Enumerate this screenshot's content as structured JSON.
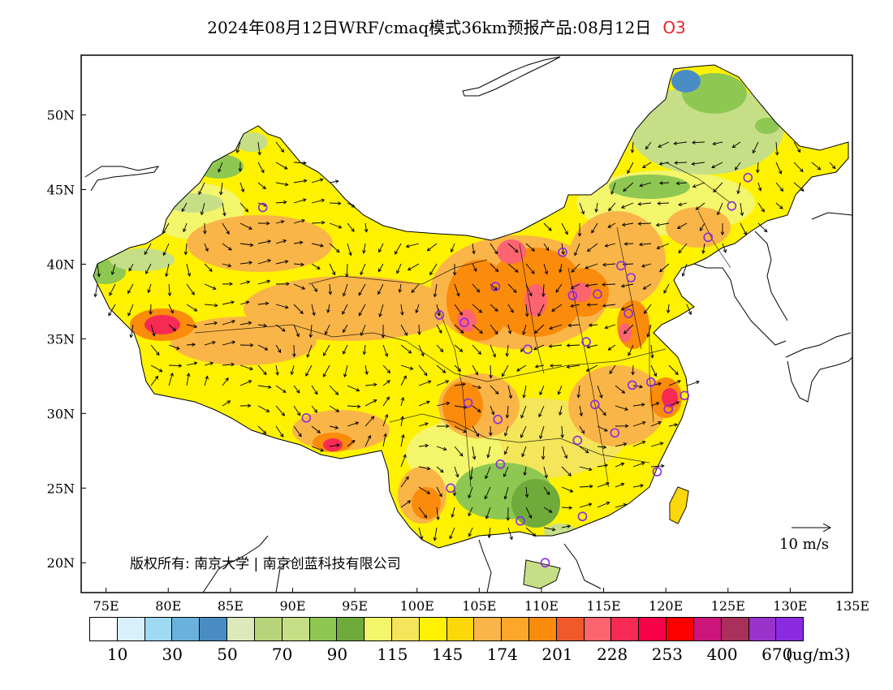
{
  "title": {
    "text": "2024年08月12日WRF/cmaq模式36km预报产品:08月12日",
    "species": "O3"
  },
  "axes": {
    "lat_labels": [
      "50N",
      "45N",
      "40N",
      "35N",
      "30N",
      "25N",
      "20N"
    ],
    "lon_labels": [
      "75E",
      "80E",
      "85E",
      "90E",
      "95E",
      "100E",
      "105E",
      "110E",
      "115E",
      "120E",
      "125E",
      "130E",
      "135E"
    ],
    "lon_range": [
      73,
      135
    ],
    "lat_range": [
      18,
      54
    ]
  },
  "legend": {
    "colors": [
      "#ffffff",
      "#d8f0fa",
      "#9fd9f2",
      "#6ab2de",
      "#4a8cc4",
      "#dde9bb",
      "#b8d47a",
      "#c6df86",
      "#8ec852",
      "#6fab3a",
      "#f3f56a",
      "#f4e55a",
      "#fff200",
      "#fcd80a",
      "#f9b548",
      "#fca62a",
      "#fb8b0a",
      "#f05a2a",
      "#fc6470",
      "#f62a55",
      "#f6004a",
      "#fc0000",
      "#cc157a",
      "#a8305a",
      "#9933cc",
      "#8a2be2"
    ],
    "labels": [
      "10",
      "30",
      "50",
      "70",
      "90",
      "115",
      "145",
      "174",
      "201",
      "228",
      "253",
      "400",
      "670"
    ],
    "unit": "(ug/m3)"
  },
  "copyright": "版权所有: 南京大学 | 南京创蓝科技有限公司",
  "wind_reference": "10 m/s",
  "stations": [
    {
      "lon": 87.6,
      "lat": 43.8
    },
    {
      "lon": 91.1,
      "lat": 29.7
    },
    {
      "lon": 101.8,
      "lat": 36.6
    },
    {
      "lon": 103.8,
      "lat": 36.1
    },
    {
      "lon": 106.3,
      "lat": 38.5
    },
    {
      "lon": 111.7,
      "lat": 40.8
    },
    {
      "lon": 108.9,
      "lat": 34.3
    },
    {
      "lon": 104.1,
      "lat": 30.7
    },
    {
      "lon": 106.5,
      "lat": 29.6
    },
    {
      "lon": 106.7,
      "lat": 26.6
    },
    {
      "lon": 102.7,
      "lat": 25.0
    },
    {
      "lon": 108.3,
      "lat": 22.8
    },
    {
      "lon": 110.3,
      "lat": 20.0
    },
    {
      "lon": 113.3,
      "lat": 23.1
    },
    {
      "lon": 112.9,
      "lat": 28.2
    },
    {
      "lon": 114.3,
      "lat": 30.6
    },
    {
      "lon": 113.6,
      "lat": 34.8
    },
    {
      "lon": 112.5,
      "lat": 37.9
    },
    {
      "lon": 114.5,
      "lat": 38.0
    },
    {
      "lon": 116.4,
      "lat": 39.9
    },
    {
      "lon": 117.2,
      "lat": 39.1
    },
    {
      "lon": 117.0,
      "lat": 36.7
    },
    {
      "lon": 117.3,
      "lat": 31.9
    },
    {
      "lon": 118.8,
      "lat": 32.1
    },
    {
      "lon": 120.2,
      "lat": 30.3
    },
    {
      "lon": 121.5,
      "lat": 31.2
    },
    {
      "lon": 115.9,
      "lat": 28.7
    },
    {
      "lon": 119.3,
      "lat": 26.1
    },
    {
      "lon": 123.4,
      "lat": 41.8
    },
    {
      "lon": 125.3,
      "lat": 43.9
    },
    {
      "lon": 126.6,
      "lat": 45.8
    }
  ]
}
